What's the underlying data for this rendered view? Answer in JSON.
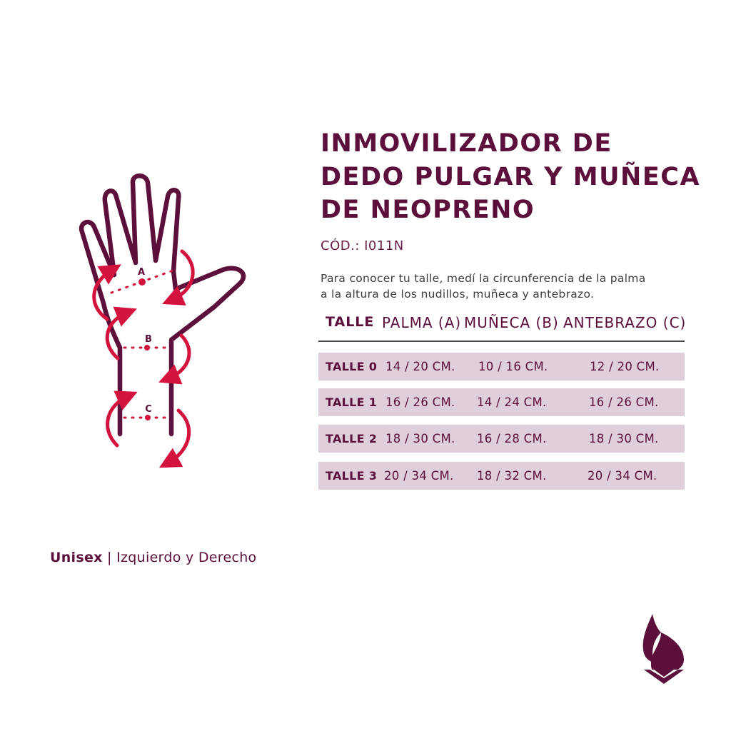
{
  "title_lines": [
    "INMOVILIZADOR DE",
    "DEDO PULGAR Y MUÑECA",
    "DE NEOPRENO"
  ],
  "code": "CÓD.: I011N",
  "description_lines": [
    "Para conocer tu talle, medí la circunferencia de la palma",
    "a la altura de los nudillos, muñeca y antebrazo."
  ],
  "table": {
    "headers": [
      "TALLE",
      "PALMA (A)",
      "MUÑECA (B)",
      "ANTEBRAZO (C)"
    ],
    "rows": [
      [
        "TALLE 0",
        "14 / 20 CM.",
        "10 / 16 CM.",
        "12 / 20 CM."
      ],
      [
        "TALLE 1",
        "16 / 26 CM.",
        "14 / 24 CM.",
        "16 / 26 CM."
      ],
      [
        "TALLE 2",
        "18 / 30 CM.",
        "16 / 28 CM.",
        "18 / 30 CM."
      ],
      [
        "TALLE 3",
        "20 / 34 CM.",
        "18 / 32 CM.",
        "20 / 34 CM."
      ]
    ]
  },
  "diagram_labels": {
    "a": "A",
    "b": "B",
    "c": "C"
  },
  "footer": {
    "bold": "Unisex",
    "separator": " | ",
    "text": "Izquierdo y Derecho"
  },
  "colors": {
    "primary": "#5c0f3a",
    "accent": "#d4123e",
    "row_bg": "#decfdb"
  },
  "icons": [
    "hand-measurement-icon",
    "brand-logo-icon"
  ]
}
